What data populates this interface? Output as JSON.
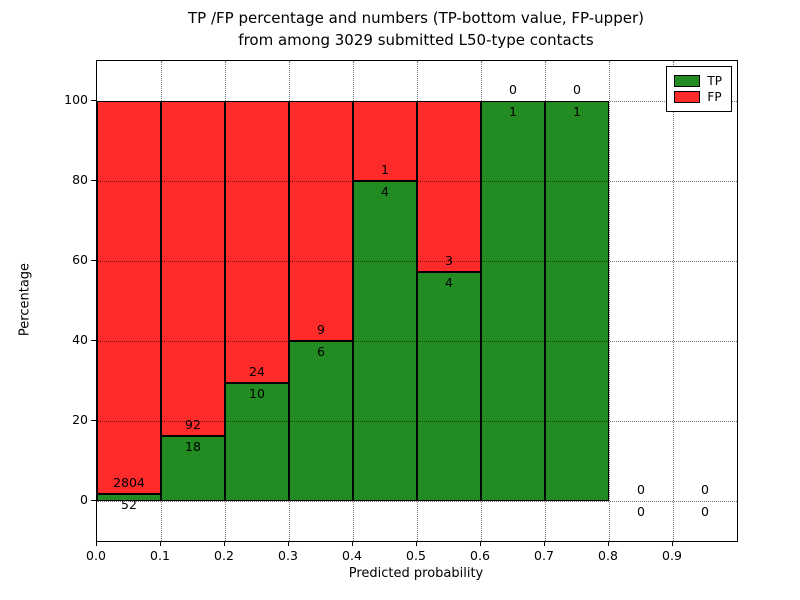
{
  "chart_data": {
    "type": "bar",
    "stacking": "percentage",
    "title_line1": "TP /FP percentage and numbers (TP-bottom value, FP-upper)",
    "title_line2": "from among 3029 submitted L50-type contacts",
    "xlabel": "Predicted probability",
    "ylabel": "Percentage",
    "xlim": [
      0.0,
      1.0
    ],
    "ylim": [
      -10,
      110
    ],
    "grid": true,
    "legend_position": "upper right",
    "x_tick_labels": [
      "0.0",
      "0.1",
      "0.2",
      "0.3",
      "0.4",
      "0.5",
      "0.6",
      "0.7",
      "0.8",
      "0.9"
    ],
    "x_tick_values": [
      0.0,
      0.1,
      0.2,
      0.3,
      0.4,
      0.5,
      0.6,
      0.7,
      0.8,
      0.9
    ],
    "y_tick_values": [
      0,
      20,
      40,
      60,
      80,
      100
    ],
    "colors": {
      "tp": "#228b22",
      "fp": "#ff2b2b"
    },
    "legend": [
      {
        "label": "TP",
        "color": "#228b22"
      },
      {
        "label": "FP",
        "color": "#ff2b2b"
      }
    ],
    "bars": [
      {
        "x0": 0.0,
        "x1": 0.1,
        "tp": 52,
        "fp": 2804
      },
      {
        "x0": 0.1,
        "x1": 0.2,
        "tp": 18,
        "fp": 92
      },
      {
        "x0": 0.2,
        "x1": 0.3,
        "tp": 10,
        "fp": 24
      },
      {
        "x0": 0.3,
        "x1": 0.4,
        "tp": 6,
        "fp": 9
      },
      {
        "x0": 0.4,
        "x1": 0.5,
        "tp": 4,
        "fp": 1
      },
      {
        "x0": 0.5,
        "x1": 0.6,
        "tp": 4,
        "fp": 3
      },
      {
        "x0": 0.6,
        "x1": 0.7,
        "tp": 1,
        "fp": 0
      },
      {
        "x0": 0.7,
        "x1": 0.8,
        "tp": 1,
        "fp": 0
      },
      {
        "x0": 0.8,
        "x1": 0.9,
        "tp": 0,
        "fp": 0
      },
      {
        "x0": 0.9,
        "x1": 1.0,
        "tp": 0,
        "fp": 0
      }
    ]
  }
}
